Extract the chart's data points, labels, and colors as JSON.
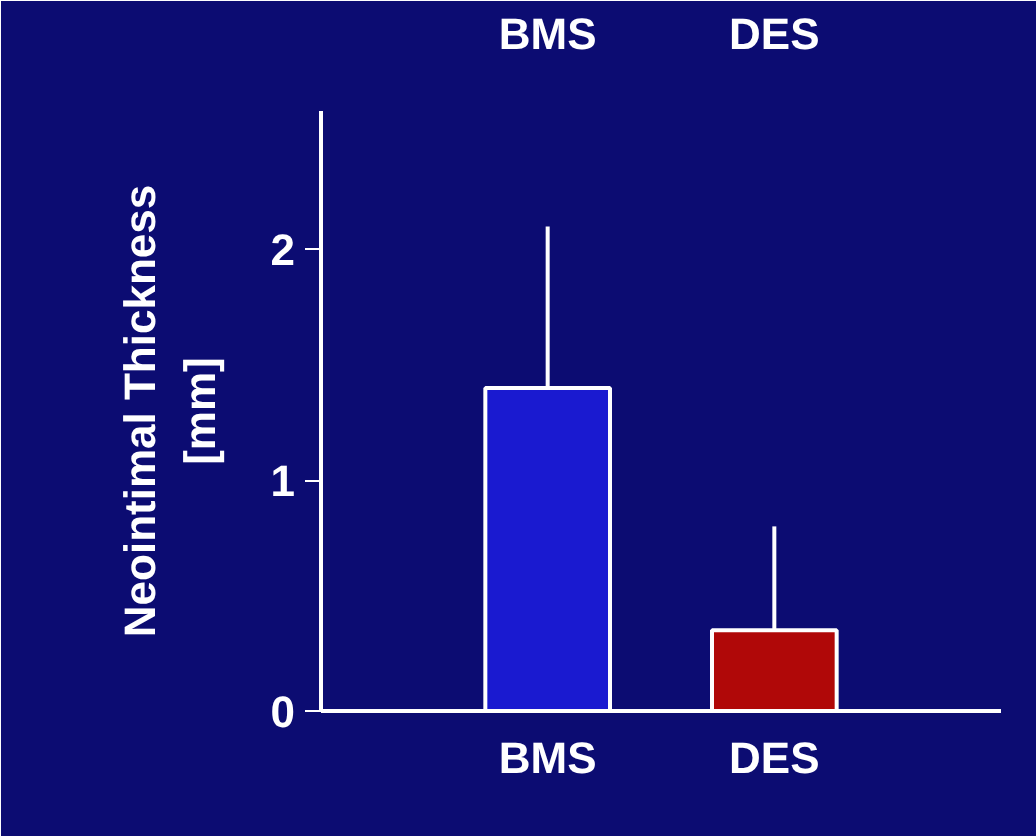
{
  "chart_data": {
    "type": "bar",
    "categories": [
      "BMS",
      "DES"
    ],
    "ylabel": "Neointimal Thickness [mm]",
    "annotations": [
      "BMS",
      "DES"
    ],
    "series": [
      {
        "colors": [
          "#1a1ad0",
          "#b00808"
        ],
        "values": [
          1.4,
          0.35
        ],
        "errors": [
          [
            1.4,
            2.1
          ],
          [
            0.35,
            0.8
          ]
        ]
      }
    ],
    "ylim": [
      0,
      2.6
    ],
    "yticks": [
      0,
      1,
      2
    ],
    "grid": false
  }
}
